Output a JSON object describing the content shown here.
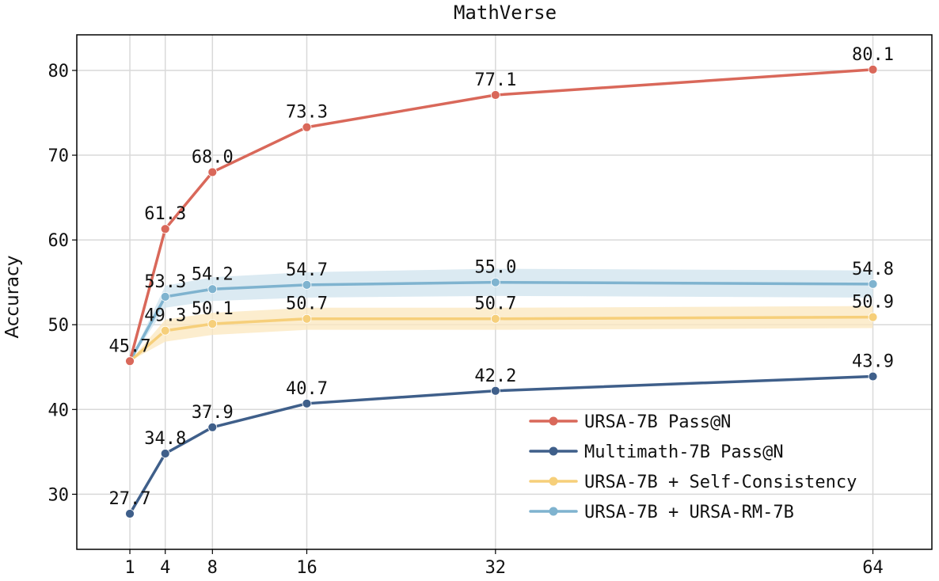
{
  "chart_data": {
    "type": "line",
    "title": "MathVerse",
    "xlabel": "",
    "ylabel": "Accuracy",
    "x": [
      1,
      4,
      8,
      16,
      32,
      64
    ],
    "x_tick_labels": [
      "1",
      "4",
      "8",
      "16",
      "32",
      "64"
    ],
    "xlim": [
      -3.5,
      69
    ],
    "ylim": [
      23.5,
      84.2
    ],
    "y_ticks": [
      30,
      40,
      50,
      60,
      70,
      80
    ],
    "y_tick_labels": [
      "30",
      "40",
      "50",
      "60",
      "70",
      "80"
    ],
    "grid": true,
    "legend_position": "lower-right",
    "series": [
      {
        "name": "URSA-7B Pass@N",
        "color": "#d9685a",
        "values": [
          45.7,
          61.3,
          68.0,
          73.3,
          77.1,
          80.1
        ],
        "labels": [
          "",
          "61.3",
          "68.0",
          "73.3",
          "77.1",
          "80.1"
        ]
      },
      {
        "name": "Multimath-7B Pass@N",
        "color": "#3f5f8a",
        "values": [
          27.7,
          34.8,
          37.9,
          40.7,
          42.2,
          43.9
        ],
        "labels": [
          "27.7",
          "34.8",
          "37.9",
          "40.7",
          "42.2",
          "43.9"
        ]
      },
      {
        "name": "URSA-7B + Self-Consistency",
        "color": "#f6cf7a",
        "band_color": "#fbe7bd",
        "values": [
          45.7,
          49.3,
          50.1,
          50.7,
          50.7,
          50.9
        ],
        "band": [
          [
            45.7,
            45.7
          ],
          [
            48.0,
            50.6
          ],
          [
            48.8,
            51.4
          ],
          [
            49.4,
            52.0
          ],
          [
            49.4,
            52.0
          ],
          [
            49.6,
            52.2
          ]
        ],
        "labels": [
          "45.7",
          "49.3",
          "50.1",
          "50.7",
          "50.7",
          "50.9"
        ]
      },
      {
        "name": "URSA-7B + URSA-RM-7B",
        "color": "#7fb3cf",
        "band_color": "#cfe3ee",
        "values": [
          45.7,
          53.3,
          54.2,
          54.7,
          55.0,
          54.8
        ],
        "band": [
          [
            45.7,
            45.7
          ],
          [
            52.0,
            54.6
          ],
          [
            52.8,
            55.6
          ],
          [
            53.2,
            56.2
          ],
          [
            53.4,
            56.6
          ],
          [
            53.2,
            56.4
          ]
        ],
        "labels": [
          "",
          "53.3",
          "54.2",
          "54.7",
          "55.0",
          "54.8"
        ]
      }
    ]
  }
}
